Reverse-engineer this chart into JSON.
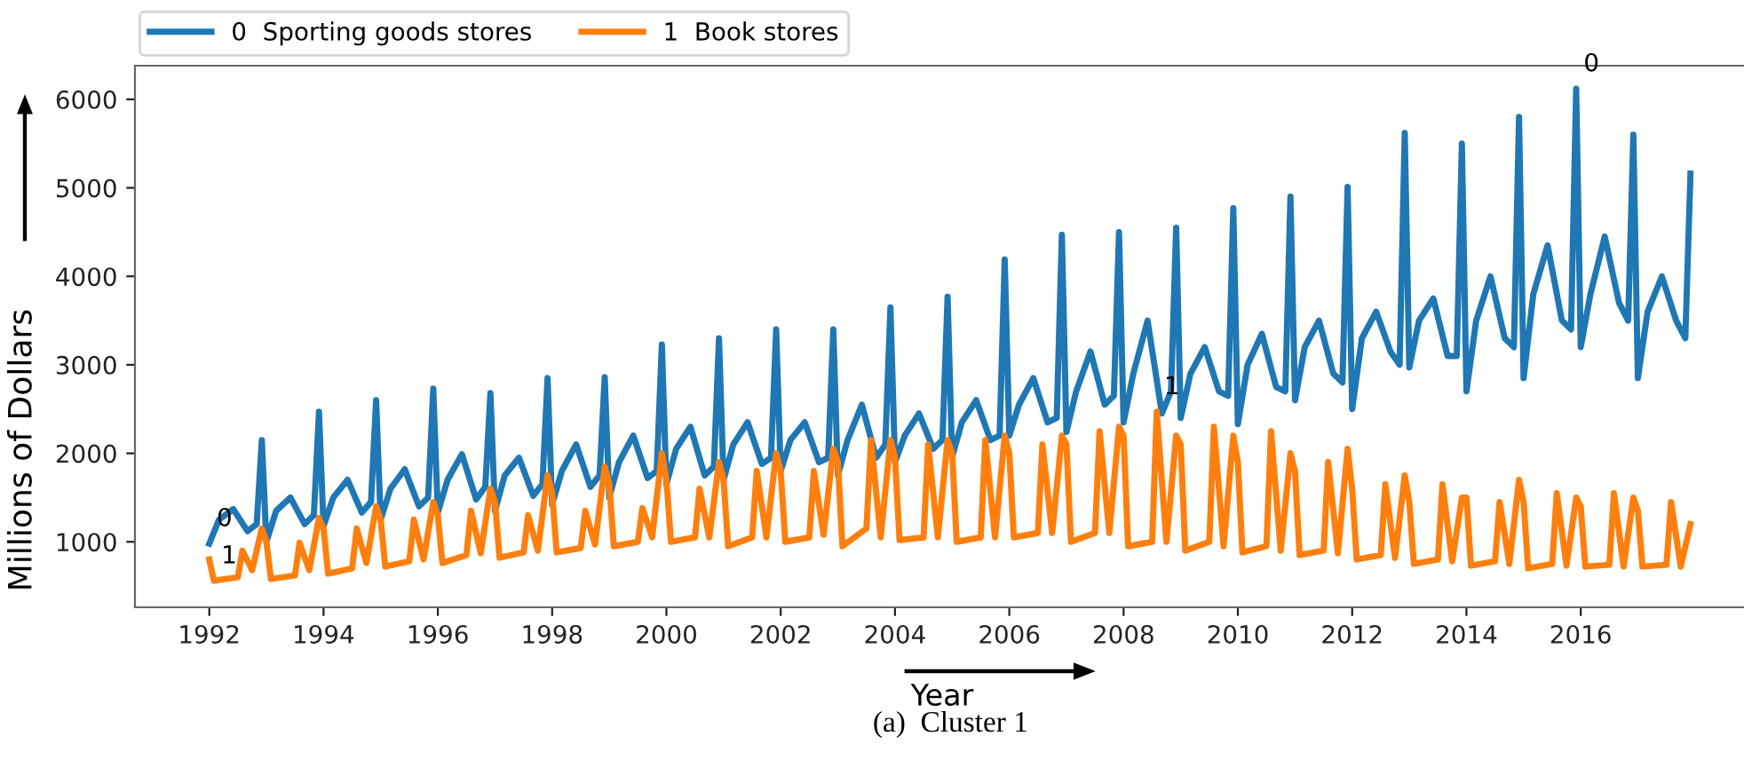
{
  "chart_data": {
    "type": "line",
    "xlabel": "Year",
    "ylabel": "Millions of Dollars",
    "xlim": [
      1990.7,
      2018.95
    ],
    "ylim": [
      260,
      6380
    ],
    "xticks": [
      1992,
      1994,
      1996,
      1998,
      2000,
      2002,
      2004,
      2006,
      2008,
      2010,
      2012,
      2014,
      2016
    ],
    "yticks": [
      1000,
      2000,
      3000,
      4000,
      5000,
      6000
    ],
    "grid": false,
    "legend": "top left",
    "marker": "none",
    "line_style": "solid",
    "series": [
      {
        "name": "0  Sporting goods stores",
        "color": "#1f77b4",
        "x": [
          1992,
          1992.17,
          1992.42,
          1992.67,
          1992.83,
          1992.92,
          1993,
          1993.17,
          1993.42,
          1993.67,
          1993.83,
          1993.92,
          1994,
          1994.17,
          1994.42,
          1994.67,
          1994.83,
          1994.92,
          1995,
          1995.17,
          1995.42,
          1995.67,
          1995.83,
          1995.92,
          1996,
          1996.17,
          1996.42,
          1996.67,
          1996.83,
          1996.92,
          1997,
          1997.17,
          1997.42,
          1997.67,
          1997.83,
          1997.92,
          1998,
          1998.17,
          1998.42,
          1998.67,
          1998.83,
          1998.92,
          1999,
          1999.17,
          1999.42,
          1999.67,
          1999.83,
          1999.92,
          2000,
          2000.17,
          2000.42,
          2000.67,
          2000.83,
          2000.92,
          2001,
          2001.17,
          2001.42,
          2001.67,
          2001.83,
          2001.92,
          2002,
          2002.17,
          2002.42,
          2002.67,
          2002.83,
          2002.92,
          2003,
          2003.17,
          2003.42,
          2003.67,
          2003.83,
          2003.92,
          2004,
          2004.17,
          2004.42,
          2004.67,
          2004.83,
          2004.92,
          2005,
          2005.17,
          2005.42,
          2005.67,
          2005.83,
          2005.92,
          2006,
          2006.17,
          2006.42,
          2006.67,
          2006.83,
          2006.92,
          2007,
          2007.17,
          2007.42,
          2007.67,
          2007.83,
          2007.92,
          2008,
          2008.17,
          2008.42,
          2008.67,
          2008.83,
          2008.92,
          2009,
          2009.17,
          2009.42,
          2009.67,
          2009.83,
          2009.92,
          2010,
          2010.17,
          2010.42,
          2010.67,
          2010.83,
          2010.92,
          2011,
          2011.17,
          2011.42,
          2011.67,
          2011.83,
          2011.92,
          2012,
          2012.17,
          2012.42,
          2012.67,
          2012.83,
          2012.92,
          2013,
          2013.17,
          2013.42,
          2013.67,
          2013.83,
          2013.92,
          2014,
          2014.17,
          2014.42,
          2014.67,
          2014.83,
          2014.92,
          2015,
          2015.17,
          2015.42,
          2015.67,
          2015.83,
          2015.92,
          2016,
          2016.17,
          2016.42,
          2016.67,
          2016.83,
          2016.92,
          2017,
          2017.17,
          2017.42,
          2017.67,
          2017.83,
          2017.92
        ],
        "values": [
          980,
          1250,
          1370,
          1120,
          1200,
          2150,
          1000,
          1350,
          1500,
          1200,
          1300,
          2470,
          1180,
          1500,
          1700,
          1330,
          1450,
          2600,
          1250,
          1600,
          1820,
          1400,
          1500,
          2730,
          1330,
          1700,
          1990,
          1480,
          1620,
          2680,
          1350,
          1750,
          1950,
          1520,
          1650,
          2850,
          1420,
          1800,
          2100,
          1620,
          1750,
          2860,
          1500,
          1900,
          2200,
          1720,
          1800,
          3230,
          1650,
          2050,
          2300,
          1750,
          1850,
          3300,
          1700,
          2100,
          2350,
          1880,
          1950,
          3400,
          1800,
          2150,
          2350,
          1900,
          1950,
          3400,
          1750,
          2150,
          2550,
          1950,
          2100,
          3650,
          1900,
          2200,
          2450,
          2050,
          2150,
          3770,
          1960,
          2350,
          2600,
          2150,
          2200,
          4190,
          2200,
          2550,
          2850,
          2350,
          2400,
          4470,
          2240,
          2700,
          3150,
          2550,
          2650,
          4500,
          2350,
          2900,
          3500,
          2450,
          2700,
          4550,
          2400,
          2900,
          3200,
          2700,
          2650,
          4770,
          2330,
          3000,
          3350,
          2750,
          2700,
          4900,
          2600,
          3200,
          3500,
          2900,
          2800,
          5010,
          2500,
          3300,
          3600,
          3150,
          3000,
          5620,
          2970,
          3500,
          3750,
          3100,
          3100,
          5500,
          2700,
          3500,
          4000,
          3300,
          3200,
          5800,
          2850,
          3800,
          4350,
          3500,
          3400,
          6120,
          3200,
          3800,
          4450,
          3700,
          3500,
          5600,
          2850,
          3600,
          4000,
          3500,
          3300,
          5160
        ]
      },
      {
        "name": "1  Book stores",
        "color": "#ff7f0e",
        "x": [
          1992,
          1992.08,
          1992.5,
          1992.58,
          1992.75,
          1992.92,
          1993,
          1993.08,
          1993.5,
          1993.58,
          1993.75,
          1993.92,
          1994,
          1994.08,
          1994.5,
          1994.58,
          1994.75,
          1994.92,
          1995,
          1995.08,
          1995.5,
          1995.58,
          1995.75,
          1995.92,
          1996,
          1996.08,
          1996.5,
          1996.58,
          1996.75,
          1996.92,
          1997,
          1997.08,
          1997.5,
          1997.58,
          1997.75,
          1997.92,
          1998,
          1998.08,
          1998.5,
          1998.58,
          1998.75,
          1998.92,
          1999,
          1999.08,
          1999.5,
          1999.58,
          1999.75,
          1999.92,
          2000,
          2000.08,
          2000.5,
          2000.58,
          2000.75,
          2000.92,
          2001,
          2001.08,
          2001.5,
          2001.58,
          2001.75,
          2001.92,
          2002,
          2002.08,
          2002.5,
          2002.58,
          2002.75,
          2002.92,
          2003,
          2003.08,
          2003.5,
          2003.58,
          2003.75,
          2003.92,
          2004,
          2004.08,
          2004.5,
          2004.58,
          2004.75,
          2004.92,
          2005,
          2005.08,
          2005.5,
          2005.58,
          2005.75,
          2005.92,
          2006,
          2006.08,
          2006.5,
          2006.58,
          2006.75,
          2006.92,
          2007,
          2007.08,
          2007.5,
          2007.58,
          2007.75,
          2007.92,
          2008,
          2008.08,
          2008.5,
          2008.58,
          2008.75,
          2008.92,
          2009,
          2009.08,
          2009.5,
          2009.58,
          2009.75,
          2009.92,
          2010,
          2010.08,
          2010.5,
          2010.58,
          2010.75,
          2010.92,
          2011,
          2011.08,
          2011.5,
          2011.58,
          2011.75,
          2011.92,
          2012,
          2012.08,
          2012.5,
          2012.58,
          2012.75,
          2012.92,
          2013,
          2013.08,
          2013.5,
          2013.58,
          2013.75,
          2013.92,
          2014,
          2014.08,
          2014.5,
          2014.58,
          2014.75,
          2014.92,
          2015,
          2015.08,
          2015.5,
          2015.58,
          2015.75,
          2015.92,
          2016,
          2016.08,
          2016.5,
          2016.58,
          2016.75,
          2016.92,
          2017,
          2017.08,
          2017.5,
          2017.58,
          2017.75,
          2017.92
        ],
        "values": [
          800,
          560,
          600,
          900,
          680,
          1150,
          1000,
          580,
          620,
          990,
          680,
          1270,
          1150,
          640,
          700,
          1150,
          760,
          1400,
          1250,
          720,
          780,
          1250,
          800,
          1450,
          1300,
          760,
          850,
          1350,
          870,
          1600,
          1450,
          820,
          880,
          1300,
          900,
          1750,
          1550,
          880,
          930,
          1350,
          970,
          1850,
          1650,
          950,
          1000,
          1380,
          1050,
          2000,
          1700,
          1000,
          1050,
          1600,
          1050,
          1900,
          1700,
          950,
          1050,
          1800,
          1050,
          2000,
          1800,
          1000,
          1050,
          1800,
          1080,
          2050,
          1900,
          950,
          1150,
          2150,
          1050,
          2150,
          1950,
          1020,
          1050,
          2100,
          1050,
          2150,
          2000,
          1000,
          1050,
          2150,
          1050,
          2200,
          2000,
          1050,
          1100,
          2100,
          1100,
          2200,
          2100,
          1000,
          1100,
          2250,
          1100,
          2300,
          2200,
          950,
          1000,
          2470,
          1000,
          2200,
          2100,
          900,
          1000,
          2300,
          950,
          2200,
          1900,
          880,
          950,
          2250,
          900,
          2000,
          1800,
          850,
          900,
          1900,
          870,
          2050,
          1600,
          800,
          850,
          1650,
          820,
          1750,
          1450,
          750,
          800,
          1650,
          780,
          1500,
          1500,
          730,
          780,
          1450,
          750,
          1700,
          1450,
          700,
          750,
          1550,
          730,
          1500,
          1400,
          720,
          740,
          1550,
          720,
          1500,
          1350,
          720,
          740,
          1450,
          720,
          1200
        ]
      }
    ],
    "annotations": [
      {
        "text": "0",
        "x": 1992,
        "y": 980
      },
      {
        "text": "1",
        "x": 1992.08,
        "y": 560
      },
      {
        "text": "1",
        "x": 2008.58,
        "y": 2470
      },
      {
        "text": "0",
        "x": 2015.92,
        "y": 6120
      },
      "(a)  Cluster 1"
    ]
  }
}
